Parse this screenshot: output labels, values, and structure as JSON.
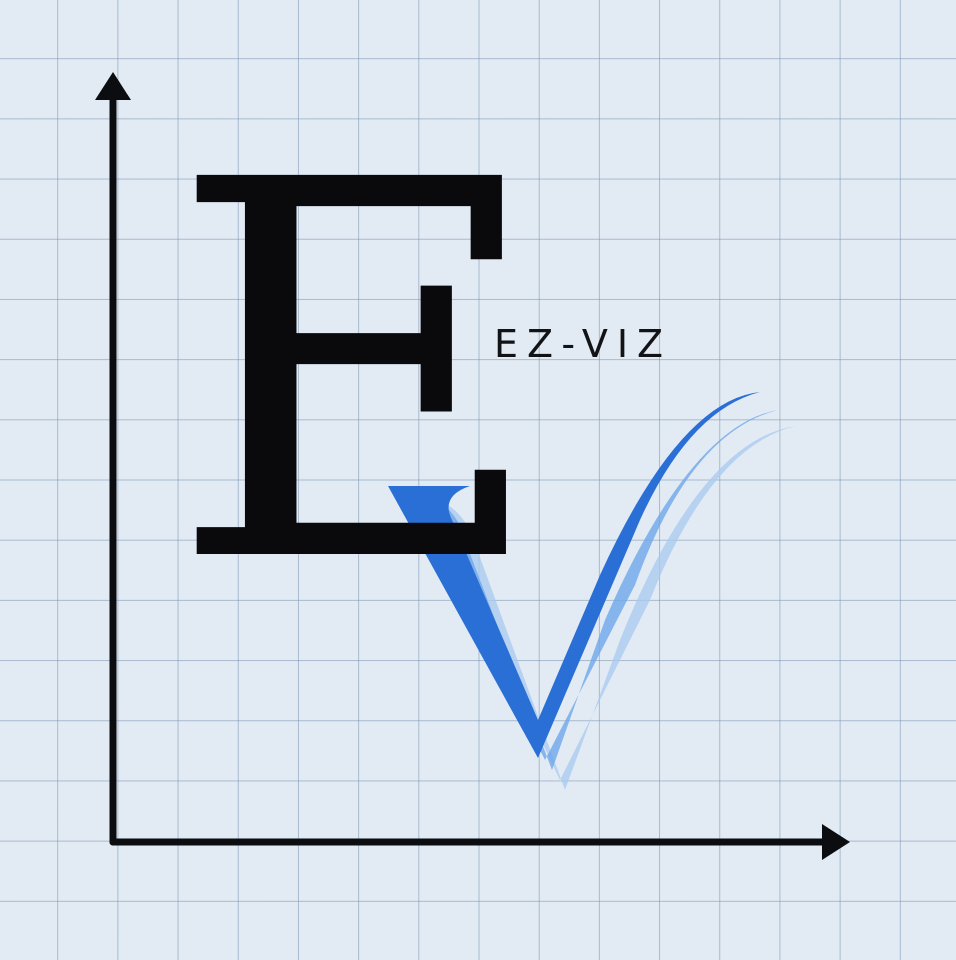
{
  "logo": {
    "monogram_letter": "E",
    "wordmark": "EZ-VIZ"
  },
  "colors": {
    "background": "#e2ebf4",
    "grid_line": "#7891af",
    "ink": "#0a0a0c",
    "accent_blue": "#2a6fd6",
    "accent_blue_light": "#6aa3e8",
    "accent_blue_pale": "#9fc3ef"
  },
  "icons": {
    "axes": "chart-axes-icon",
    "checkmark": "v-checkmark-icon"
  }
}
